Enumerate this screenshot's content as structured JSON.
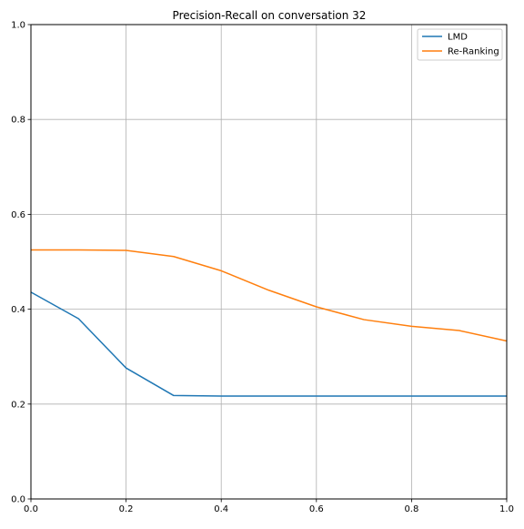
{
  "chart_data": {
    "type": "line",
    "title": "Precision-Recall on conversation 32",
    "xlabel": "",
    "ylabel": "",
    "xlim": [
      0,
      1
    ],
    "ylim": [
      0,
      1
    ],
    "x_ticks": [
      "0.0",
      "0.2",
      "0.4",
      "0.6",
      "0.8",
      "1.0"
    ],
    "y_ticks": [
      "0.0",
      "0.2",
      "0.4",
      "0.6",
      "0.8",
      "1.0"
    ],
    "grid": true,
    "legend_position": "top-right",
    "x": [
      0.0,
      0.1,
      0.2,
      0.3,
      0.4,
      0.5,
      0.6,
      0.7,
      0.8,
      0.9,
      1.0
    ],
    "series": [
      {
        "name": "LMD",
        "color": "#1f77b4",
        "values": [
          0.436,
          0.38,
          0.276,
          0.218,
          0.217,
          0.217,
          0.217,
          0.217,
          0.217,
          0.217,
          0.217
        ]
      },
      {
        "name": "Re-Ranking",
        "color": "#ff7f0e",
        "values": [
          0.525,
          0.525,
          0.524,
          0.511,
          0.481,
          0.44,
          0.405,
          0.378,
          0.364,
          0.355,
          0.333
        ]
      }
    ]
  }
}
